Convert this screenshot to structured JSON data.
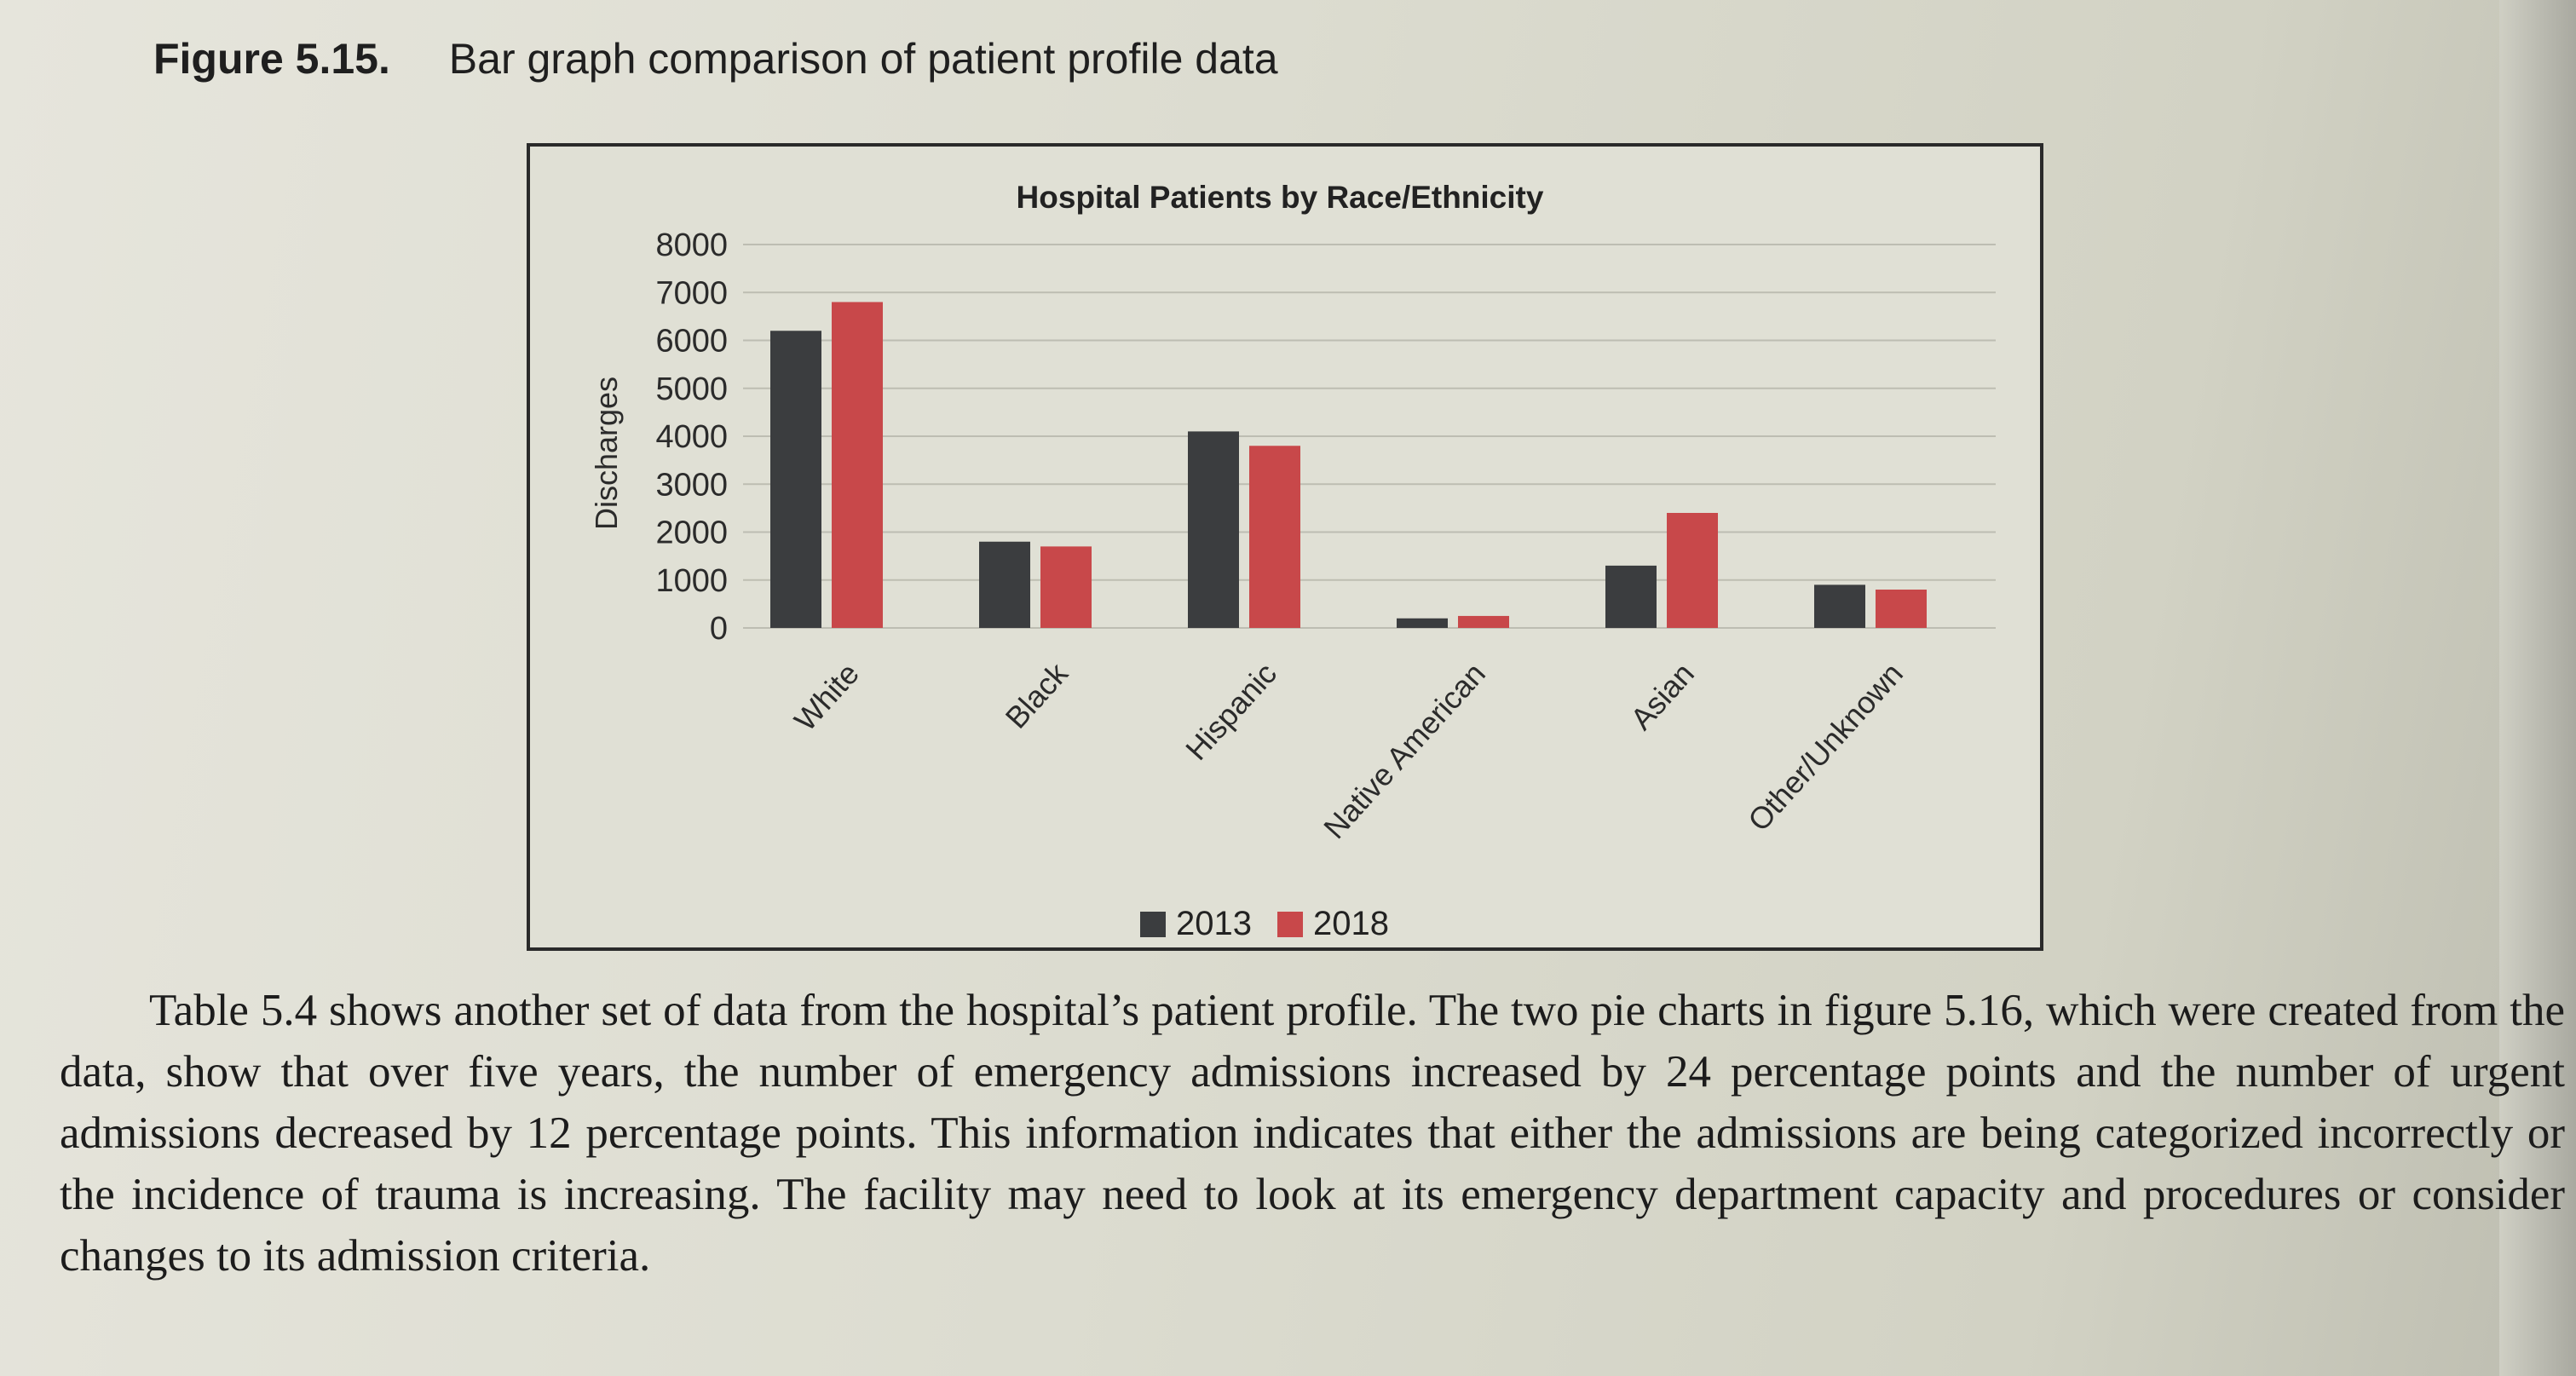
{
  "figure": {
    "label": "Figure 5.15.",
    "caption": "Bar graph comparison of patient profile data"
  },
  "colors": {
    "series_2013": "#3b3d3f",
    "series_2018": "#c8484a",
    "grid": "#bdbdb2",
    "axis_text": "#2b2b2b"
  },
  "chart_data": {
    "type": "bar",
    "title": "Hospital Patients by Race/Ethnicity",
    "ylabel": "Discharges",
    "xlabel": "",
    "ylim": [
      0,
      8000
    ],
    "yticks": [
      0,
      1000,
      2000,
      3000,
      4000,
      5000,
      6000,
      7000,
      8000
    ],
    "grid": true,
    "legend_position": "bottom",
    "categories": [
      "White",
      "Black",
      "Hispanic",
      "Native American",
      "Asian",
      "Other/Unknown"
    ],
    "series": [
      {
        "name": "2013",
        "values": [
          6200,
          1800,
          4100,
          200,
          1300,
          900
        ]
      },
      {
        "name": "2018",
        "values": [
          6800,
          1700,
          3800,
          250,
          2400,
          800
        ]
      }
    ]
  },
  "paragraph": "Table 5.4 shows another set of data from the hospital’s patient profile. The two pie charts in figure 5.16, which were created from the data, show that over five years, the number of emergency admissions increased by 24 percentage points and the number of urgent admissions decreased by 12 percentage points. This information indicates that either the admissions are being categorized incorrectly or the incidence of trauma is increasing. The facility may need to look at its emergency department capacity and procedures or consider changes to its admission criteria."
}
